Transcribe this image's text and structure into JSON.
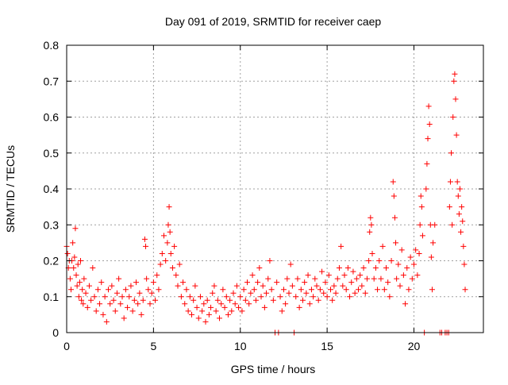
{
  "chart_data": {
    "type": "scatter",
    "title": "Day 091 of 2019, SRMTID for receiver caep",
    "xlabel": "GPS time / hours",
    "ylabel": "SRMTID / TECUs",
    "xlim": [
      0,
      24
    ],
    "ylim": [
      0,
      0.8
    ],
    "xticks": [
      0,
      5,
      10,
      15,
      20
    ],
    "yticks": [
      0,
      0.1,
      0.2,
      0.3,
      0.4,
      0.5,
      0.6,
      0.7,
      0.8
    ],
    "ytick_labels": [
      "0",
      "0.1",
      "0.2",
      "0.3",
      "0.4",
      "0.5",
      "0.6",
      "0.7",
      "0.8"
    ],
    "grid": true,
    "marker": "+",
    "color": "#ff0000",
    "series": [
      {
        "name": "caep",
        "points": [
          [
            0.0,
            0.24
          ],
          [
            0.05,
            0.22
          ],
          [
            0.1,
            0.18
          ],
          [
            0.15,
            0.2
          ],
          [
            0.2,
            0.15
          ],
          [
            0.25,
            0.12
          ],
          [
            0.3,
            0.2
          ],
          [
            0.35,
            0.25
          ],
          [
            0.4,
            0.18
          ],
          [
            0.45,
            0.21
          ],
          [
            0.5,
            0.29
          ],
          [
            0.55,
            0.16
          ],
          [
            0.6,
            0.13
          ],
          [
            0.65,
            0.19
          ],
          [
            0.7,
            0.1
          ],
          [
            0.75,
            0.14
          ],
          [
            0.8,
            0.2
          ],
          [
            0.85,
            0.09
          ],
          [
            0.9,
            0.12
          ],
          [
            0.95,
            0.08
          ],
          [
            1.0,
            0.15
          ],
          [
            1.1,
            0.11
          ],
          [
            1.2,
            0.07
          ],
          [
            1.3,
            0.13
          ],
          [
            1.4,
            0.09
          ],
          [
            1.5,
            0.18
          ],
          [
            1.6,
            0.1
          ],
          [
            1.7,
            0.06
          ],
          [
            1.8,
            0.12
          ],
          [
            1.9,
            0.08
          ],
          [
            2.0,
            0.14
          ],
          [
            2.1,
            0.05
          ],
          [
            2.2,
            0.1
          ],
          [
            2.3,
            0.03
          ],
          [
            2.4,
            0.12
          ],
          [
            2.5,
            0.08
          ],
          [
            2.6,
            0.13
          ],
          [
            2.7,
            0.09
          ],
          [
            2.8,
            0.06
          ],
          [
            2.9,
            0.11
          ],
          [
            3.0,
            0.15
          ],
          [
            3.1,
            0.08
          ],
          [
            3.2,
            0.1
          ],
          [
            3.3,
            0.04
          ],
          [
            3.4,
            0.12
          ],
          [
            3.5,
            0.07
          ],
          [
            3.6,
            0.1
          ],
          [
            3.7,
            0.13
          ],
          [
            3.8,
            0.06
          ],
          [
            3.9,
            0.09
          ],
          [
            4.0,
            0.14
          ],
          [
            4.1,
            0.08
          ],
          [
            4.2,
            0.11
          ],
          [
            4.3,
            0.05
          ],
          [
            4.4,
            0.09
          ],
          [
            4.5,
            0.26
          ],
          [
            4.55,
            0.24
          ],
          [
            4.6,
            0.15
          ],
          [
            4.7,
            0.12
          ],
          [
            4.8,
            0.08
          ],
          [
            4.9,
            0.11
          ],
          [
            5.0,
            0.14
          ],
          [
            5.1,
            0.09
          ],
          [
            5.2,
            0.16
          ],
          [
            5.3,
            0.12
          ],
          [
            5.4,
            0.19
          ],
          [
            5.5,
            0.22
          ],
          [
            5.6,
            0.27
          ],
          [
            5.7,
            0.2
          ],
          [
            5.8,
            0.25
          ],
          [
            5.85,
            0.3
          ],
          [
            5.9,
            0.35
          ],
          [
            5.95,
            0.28
          ],
          [
            6.0,
            0.22
          ],
          [
            6.1,
            0.18
          ],
          [
            6.2,
            0.24
          ],
          [
            6.3,
            0.16
          ],
          [
            6.4,
            0.13
          ],
          [
            6.5,
            0.19
          ],
          [
            6.6,
            0.1
          ],
          [
            6.7,
            0.14
          ],
          [
            6.8,
            0.08
          ],
          [
            6.9,
            0.12
          ],
          [
            7.0,
            0.06
          ],
          [
            7.1,
            0.1
          ],
          [
            7.2,
            0.05
          ],
          [
            7.3,
            0.09
          ],
          [
            7.4,
            0.13
          ],
          [
            7.5,
            0.07
          ],
          [
            7.6,
            0.04
          ],
          [
            7.7,
            0.1
          ],
          [
            7.8,
            0.06
          ],
          [
            7.9,
            0.08
          ],
          [
            8.0,
            0.03
          ],
          [
            8.1,
            0.09
          ],
          [
            8.2,
            0.05
          ],
          [
            8.3,
            0.07
          ],
          [
            8.4,
            0.11
          ],
          [
            8.5,
            0.13
          ],
          [
            8.6,
            0.06
          ],
          [
            8.7,
            0.09
          ],
          [
            8.8,
            0.04
          ],
          [
            8.9,
            0.08
          ],
          [
            9.0,
            0.12
          ],
          [
            9.1,
            0.07
          ],
          [
            9.2,
            0.1
          ],
          [
            9.3,
            0.05
          ],
          [
            9.4,
            0.09
          ],
          [
            9.5,
            0.06
          ],
          [
            9.6,
            0.11
          ],
          [
            9.7,
            0.08
          ],
          [
            9.8,
            0.13
          ],
          [
            9.9,
            0.07
          ],
          [
            10.0,
            0.1
          ],
          [
            10.1,
            0.06
          ],
          [
            10.2,
            0.12
          ],
          [
            10.3,
            0.09
          ],
          [
            10.4,
            0.14
          ],
          [
            10.5,
            0.08
          ],
          [
            10.6,
            0.11
          ],
          [
            10.7,
            0.16
          ],
          [
            10.8,
            0.12
          ],
          [
            10.9,
            0.09
          ],
          [
            11.0,
            0.14
          ],
          [
            11.1,
            0.18
          ],
          [
            11.2,
            0.1
          ],
          [
            11.3,
            0.13
          ],
          [
            11.4,
            0.07
          ],
          [
            11.5,
            0.11
          ],
          [
            11.6,
            0.15
          ],
          [
            11.7,
            0.2
          ],
          [
            11.8,
            0.12
          ],
          [
            11.9,
            0.09
          ],
          [
            12.0,
            0.0
          ],
          [
            12.1,
            0.14
          ],
          [
            12.2,
            0.0
          ],
          [
            12.3,
            0.1
          ],
          [
            12.4,
            0.06
          ],
          [
            12.5,
            0.12
          ],
          [
            12.6,
            0.08
          ],
          [
            12.7,
            0.15
          ],
          [
            12.8,
            0.11
          ],
          [
            12.9,
            0.19
          ],
          [
            13.0,
            0.13
          ],
          [
            13.1,
            0.0
          ],
          [
            13.2,
            0.1
          ],
          [
            13.3,
            0.15
          ],
          [
            13.4,
            0.07
          ],
          [
            13.5,
            0.12
          ],
          [
            13.6,
            0.09
          ],
          [
            13.7,
            0.14
          ],
          [
            13.8,
            0.11
          ],
          [
            13.9,
            0.16
          ],
          [
            14.0,
            0.08
          ],
          [
            14.1,
            0.12
          ],
          [
            14.2,
            0.1
          ],
          [
            14.3,
            0.15
          ],
          [
            14.4,
            0.13
          ],
          [
            14.5,
            0.09
          ],
          [
            14.6,
            0.12
          ],
          [
            14.7,
            0.17
          ],
          [
            14.8,
            0.11
          ],
          [
            14.9,
            0.14
          ],
          [
            15.0,
            0.1
          ],
          [
            15.1,
            0.16
          ],
          [
            15.2,
            0.12
          ],
          [
            15.3,
            0.09
          ],
          [
            15.4,
            0.13
          ],
          [
            15.5,
            0.11
          ],
          [
            15.6,
            0.15
          ],
          [
            15.7,
            0.18
          ],
          [
            15.8,
            0.24
          ],
          [
            15.9,
            0.13
          ],
          [
            16.0,
            0.16
          ],
          [
            16.1,
            0.12
          ],
          [
            16.2,
            0.18
          ],
          [
            16.3,
            0.1
          ],
          [
            16.4,
            0.14
          ],
          [
            16.5,
            0.17
          ],
          [
            16.6,
            0.11
          ],
          [
            16.7,
            0.15
          ],
          [
            16.8,
            0.12
          ],
          [
            16.9,
            0.16
          ],
          [
            17.0,
            0.13
          ],
          [
            17.1,
            0.18
          ],
          [
            17.2,
            0.11
          ],
          [
            17.3,
            0.15
          ],
          [
            17.4,
            0.2
          ],
          [
            17.45,
            0.28
          ],
          [
            17.5,
            0.32
          ],
          [
            17.55,
            0.3
          ],
          [
            17.6,
            0.22
          ],
          [
            17.7,
            0.15
          ],
          [
            17.8,
            0.18
          ],
          [
            17.9,
            0.12
          ],
          [
            18.0,
            0.2
          ],
          [
            18.1,
            0.15
          ],
          [
            18.2,
            0.24
          ],
          [
            18.3,
            0.12
          ],
          [
            18.4,
            0.18
          ],
          [
            18.5,
            0.14
          ],
          [
            18.6,
            0.1
          ],
          [
            18.7,
            0.2
          ],
          [
            18.8,
            0.42
          ],
          [
            18.85,
            0.38
          ],
          [
            18.9,
            0.32
          ],
          [
            18.95,
            0.25
          ],
          [
            19.0,
            0.15
          ],
          [
            19.1,
            0.19
          ],
          [
            19.2,
            0.13
          ],
          [
            19.3,
            0.23
          ],
          [
            19.4,
            0.16
          ],
          [
            19.5,
            0.08
          ],
          [
            19.6,
            0.18
          ],
          [
            19.7,
            0.12
          ],
          [
            19.8,
            0.21
          ],
          [
            19.9,
            0.15
          ],
          [
            20.0,
            0.19
          ],
          [
            20.1,
            0.23
          ],
          [
            20.2,
            0.16
          ],
          [
            20.3,
            0.22
          ],
          [
            20.35,
            0.3
          ],
          [
            20.4,
            0.38
          ],
          [
            20.45,
            0.35
          ],
          [
            20.5,
            0.27
          ],
          [
            20.6,
            0.0
          ],
          [
            20.7,
            0.4
          ],
          [
            20.75,
            0.47
          ],
          [
            20.8,
            0.54
          ],
          [
            20.85,
            0.63
          ],
          [
            20.9,
            0.58
          ],
          [
            20.95,
            0.3
          ],
          [
            21.0,
            0.21
          ],
          [
            21.05,
            0.12
          ],
          [
            21.1,
            0.25
          ],
          [
            21.2,
            0.3
          ],
          [
            21.5,
            0.0
          ],
          [
            21.6,
            0.0
          ],
          [
            21.8,
            0.0
          ],
          [
            21.9,
            0.0
          ],
          [
            22.0,
            0.0
          ],
          [
            22.05,
            0.35
          ],
          [
            22.1,
            0.42
          ],
          [
            22.15,
            0.5
          ],
          [
            22.2,
            0.3
          ],
          [
            22.25,
            0.6
          ],
          [
            22.3,
            0.7
          ],
          [
            22.35,
            0.72
          ],
          [
            22.4,
            0.65
          ],
          [
            22.45,
            0.55
          ],
          [
            22.5,
            0.42
          ],
          [
            22.55,
            0.38
          ],
          [
            22.6,
            0.33
          ],
          [
            22.65,
            0.4
          ],
          [
            22.7,
            0.28
          ],
          [
            22.75,
            0.35
          ],
          [
            22.8,
            0.31
          ],
          [
            22.85,
            0.24
          ],
          [
            22.9,
            0.19
          ],
          [
            22.95,
            0.12
          ]
        ]
      }
    ]
  }
}
